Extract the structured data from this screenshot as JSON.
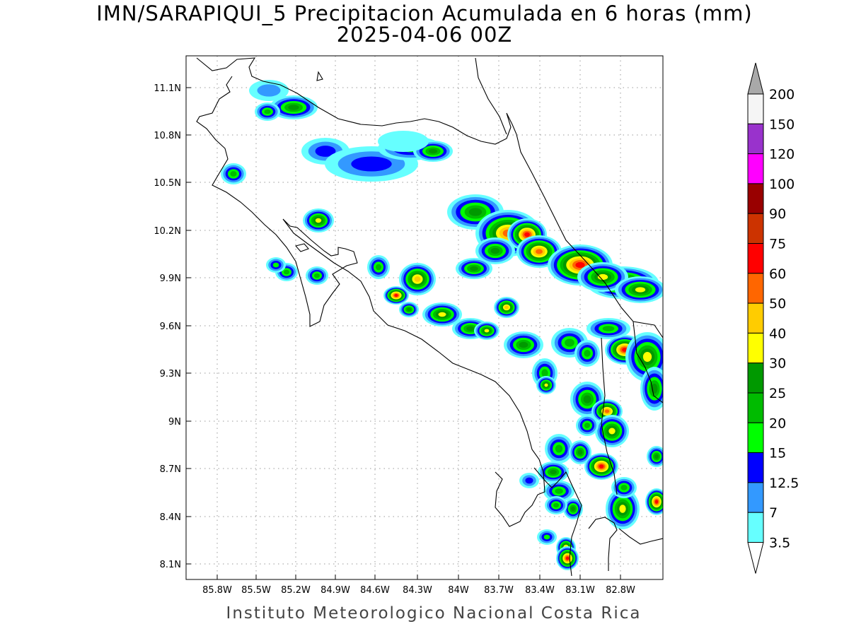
{
  "title": {
    "line1": "IMN/SARAPIQUI_5 Precipitacion Acumulada en 6 horas (mm)",
    "line2": "2025-04-06 00Z"
  },
  "footer": "Instituto Meteorologico Nacional Costa Rica",
  "axes": {
    "lat_labels": [
      "11.1N",
      "10.8N",
      "10.5N",
      "10.2N",
      "9.9N",
      "9.6N",
      "9.3N",
      "9N",
      "8.7N",
      "8.4N",
      "8.1N"
    ],
    "lon_labels": [
      "85.8W",
      "85.5W",
      "85.2W",
      "84.9W",
      "84.6W",
      "84.3W",
      "84W",
      "83.7W",
      "83.4W",
      "83.1W",
      "82.8W"
    ]
  },
  "colorbar": {
    "labels": [
      "200",
      "150",
      "120",
      "100",
      "90",
      "75",
      "60",
      "50",
      "40",
      "30",
      "25",
      "20",
      "15",
      "12.5",
      "7",
      "3.5"
    ],
    "colors": [
      "#f5f5f5",
      "#9932cc",
      "#ff00ff",
      "#990000",
      "#cc3300",
      "#ff0000",
      "#ff6600",
      "#ffcc00",
      "#ffff00",
      "#009900",
      "#00bb00",
      "#00ff00",
      "#0000ff",
      "#3399ff",
      "#66ffff"
    ],
    "over_color": "#a9a9a9",
    "under_color": "#ffffff"
  }
}
